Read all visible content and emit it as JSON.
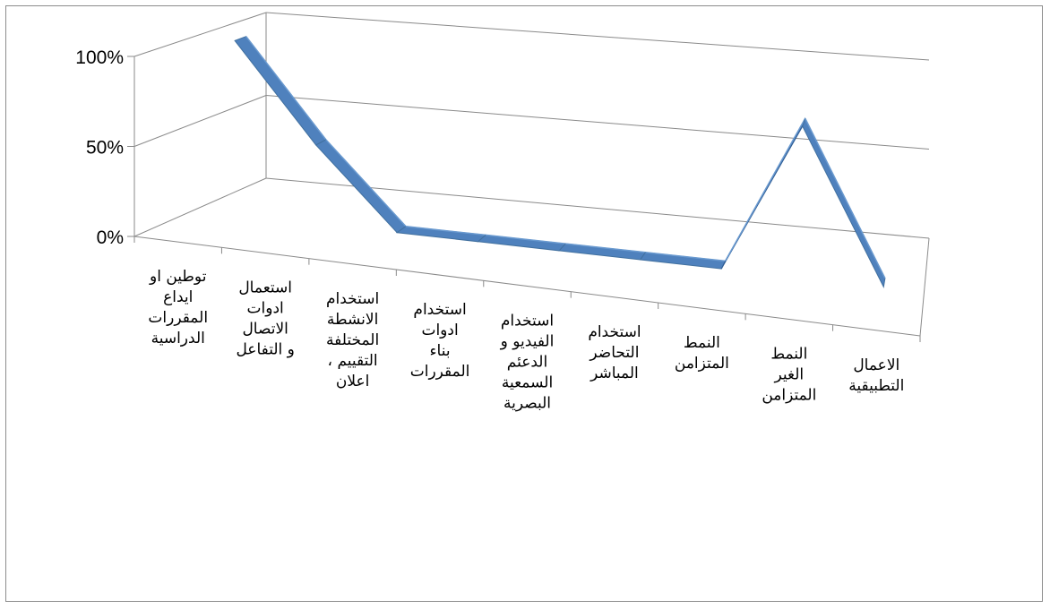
{
  "chart_data": {
    "type": "line",
    "style": "3d-ribbon",
    "title": "",
    "xlabel": "",
    "ylabel": "",
    "y_tick_labels": [
      "0%",
      "50%",
      "100%"
    ],
    "ylim": [
      0,
      100
    ],
    "grid": true,
    "legend": "none",
    "categories": [
      [
        "توطين او",
        "ايداع",
        "المقررات",
        "الدراسية"
      ],
      [
        "استعمال",
        "ادوات",
        "الاتصال",
        "و التفاعل"
      ],
      [
        "استخدام",
        "الانشطة",
        "المختلفة",
        "التقييم ،",
        "اعلان"
      ],
      [
        "استخدام",
        "ادوات",
        "بناء",
        "المقررات"
      ],
      [
        "استخدام",
        "الفيديو و",
        "الدعئم",
        "السمعية",
        "البصرية"
      ],
      [
        "استخدام",
        "التحاضر",
        "المباشر"
      ],
      [
        "النمط",
        "المتزامن"
      ],
      [
        "النمط",
        "الغير",
        "المتزامن"
      ],
      [
        "الاعمال",
        "التطبيقية"
      ]
    ],
    "series": [
      {
        "values": [
          100,
          45,
          0,
          0,
          0,
          0,
          0,
          85,
          0
        ],
        "color": "#4f81bd"
      }
    ]
  }
}
